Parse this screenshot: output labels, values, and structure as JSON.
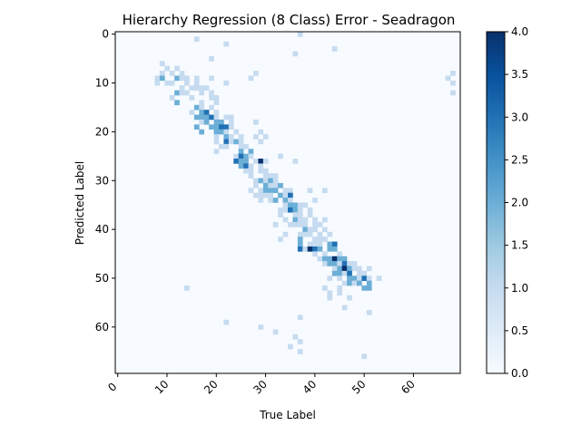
{
  "chart_data": {
    "type": "heatmap",
    "title": "Hierarchy Regression (8 Class) Error - Seadragon",
    "xlabel": "True Label",
    "ylabel": "Predicted Label",
    "x_range": [
      0,
      69
    ],
    "y_range": [
      0,
      69
    ],
    "x_ticks": [
      0,
      10,
      20,
      30,
      40,
      50,
      60
    ],
    "y_ticks": [
      0,
      10,
      20,
      30,
      40,
      50,
      60
    ],
    "colorbar": {
      "min": 0,
      "max": 4,
      "ticks": [
        "0.0",
        "0.5",
        "1.0",
        "1.5",
        "2.0",
        "2.5",
        "3.0",
        "3.5",
        "4.0"
      ],
      "colormap": "Blues"
    },
    "colors": {
      "low": "#f7fbff",
      "high": "#08306b"
    },
    "cells": [
      [
        37,
        0,
        1
      ],
      [
        16,
        1,
        1
      ],
      [
        22,
        2,
        1
      ],
      [
        44,
        3,
        1
      ],
      [
        36,
        4,
        1
      ],
      [
        19,
        5,
        1
      ],
      [
        9,
        6,
        1
      ],
      [
        10,
        7,
        1
      ],
      [
        12,
        7,
        1
      ],
      [
        9,
        8,
        1
      ],
      [
        11,
        8,
        1
      ],
      [
        13,
        8,
        1
      ],
      [
        28,
        8,
        1
      ],
      [
        68,
        8,
        1
      ],
      [
        8,
        9,
        1
      ],
      [
        9,
        9,
        2
      ],
      [
        12,
        9,
        2
      ],
      [
        13,
        9,
        1
      ],
      [
        14,
        9,
        1
      ],
      [
        16,
        9,
        1
      ],
      [
        19,
        9,
        1
      ],
      [
        27,
        9,
        1
      ],
      [
        67,
        9,
        1
      ],
      [
        8,
        10,
        1
      ],
      [
        10,
        10,
        1
      ],
      [
        11,
        10,
        1
      ],
      [
        14,
        10,
        1
      ],
      [
        16,
        10,
        1
      ],
      [
        22,
        10,
        1
      ],
      [
        68,
        10,
        1
      ],
      [
        13,
        11,
        1
      ],
      [
        15,
        11,
        1
      ],
      [
        16,
        11,
        1
      ],
      [
        17,
        11,
        1
      ],
      [
        18,
        11,
        1
      ],
      [
        12,
        12,
        2
      ],
      [
        13,
        12,
        1
      ],
      [
        14,
        12,
        1
      ],
      [
        17,
        12,
        1
      ],
      [
        19,
        12,
        1
      ],
      [
        68,
        12,
        1
      ],
      [
        11,
        13,
        1
      ],
      [
        15,
        13,
        1
      ],
      [
        19,
        13,
        1
      ],
      [
        20,
        13,
        1
      ],
      [
        12,
        14,
        2
      ],
      [
        17,
        14,
        1
      ],
      [
        20,
        14,
        1
      ],
      [
        16,
        15,
        2
      ],
      [
        17,
        15,
        1
      ],
      [
        19,
        15,
        1
      ],
      [
        15,
        16,
        1
      ],
      [
        17,
        16,
        2
      ],
      [
        18,
        16,
        3
      ],
      [
        20,
        16,
        1
      ],
      [
        16,
        17,
        2
      ],
      [
        17,
        17,
        2
      ],
      [
        18,
        17,
        2
      ],
      [
        19,
        17,
        3
      ],
      [
        20,
        17,
        1
      ],
      [
        22,
        17,
        1
      ],
      [
        23,
        17,
        1
      ],
      [
        17,
        18,
        1
      ],
      [
        18,
        18,
        2
      ],
      [
        20,
        18,
        2
      ],
      [
        21,
        18,
        2
      ],
      [
        23,
        18,
        1
      ],
      [
        28,
        18,
        1
      ],
      [
        16,
        19,
        2
      ],
      [
        19,
        19,
        2
      ],
      [
        20,
        19,
        2
      ],
      [
        21,
        19,
        3
      ],
      [
        22,
        19,
        3
      ],
      [
        23,
        19,
        1
      ],
      [
        17,
        20,
        2
      ],
      [
        20,
        20,
        2
      ],
      [
        21,
        20,
        2
      ],
      [
        22,
        20,
        1
      ],
      [
        24,
        20,
        1
      ],
      [
        29,
        20,
        1
      ],
      [
        20,
        21,
        1
      ],
      [
        22,
        21,
        2
      ],
      [
        23,
        21,
        1
      ],
      [
        25,
        21,
        1
      ],
      [
        28,
        21,
        1
      ],
      [
        30,
        21,
        1
      ],
      [
        20,
        22,
        1
      ],
      [
        22,
        22,
        3
      ],
      [
        23,
        22,
        1
      ],
      [
        24,
        22,
        2
      ],
      [
        25,
        22,
        1
      ],
      [
        29,
        22,
        1
      ],
      [
        21,
        23,
        1
      ],
      [
        22,
        23,
        1
      ],
      [
        25,
        23,
        1
      ],
      [
        26,
        23,
        1
      ],
      [
        20,
        24,
        1
      ],
      [
        25,
        24,
        2
      ],
      [
        27,
        24,
        2
      ],
      [
        24,
        25,
        1
      ],
      [
        25,
        25,
        3
      ],
      [
        26,
        25,
        2
      ],
      [
        27,
        25,
        1
      ],
      [
        33,
        25,
        1
      ],
      [
        24,
        26,
        3
      ],
      [
        25,
        26,
        2
      ],
      [
        26,
        26,
        2
      ],
      [
        28,
        26,
        1
      ],
      [
        29,
        26,
        4
      ],
      [
        30,
        26,
        1
      ],
      [
        36,
        26,
        1
      ],
      [
        25,
        27,
        2
      ],
      [
        26,
        27,
        3
      ],
      [
        27,
        27,
        1
      ],
      [
        29,
        27,
        1
      ],
      [
        26,
        28,
        1
      ],
      [
        27,
        28,
        1
      ],
      [
        29,
        28,
        1
      ],
      [
        30,
        28,
        1
      ],
      [
        27,
        29,
        1
      ],
      [
        30,
        29,
        1
      ],
      [
        31,
        29,
        1
      ],
      [
        32,
        29,
        1
      ],
      [
        28,
        30,
        1
      ],
      [
        29,
        30,
        2
      ],
      [
        30,
        30,
        1
      ],
      [
        31,
        30,
        2
      ],
      [
        32,
        30,
        1
      ],
      [
        28,
        31,
        1
      ],
      [
        30,
        31,
        2
      ],
      [
        31,
        31,
        1
      ],
      [
        32,
        31,
        1
      ],
      [
        33,
        31,
        2
      ],
      [
        27,
        32,
        1
      ],
      [
        29,
        32,
        1
      ],
      [
        30,
        32,
        2
      ],
      [
        31,
        32,
        2
      ],
      [
        32,
        32,
        2
      ],
      [
        34,
        32,
        1
      ],
      [
        35,
        32,
        1
      ],
      [
        39,
        32,
        1
      ],
      [
        42,
        32,
        1
      ],
      [
        28,
        33,
        1
      ],
      [
        29,
        33,
        1
      ],
      [
        30,
        33,
        1
      ],
      [
        31,
        33,
        1
      ],
      [
        33,
        33,
        2
      ],
      [
        34,
        33,
        1
      ],
      [
        35,
        33,
        3
      ],
      [
        29,
        34,
        1
      ],
      [
        31,
        34,
        1
      ],
      [
        32,
        34,
        2
      ],
      [
        34,
        34,
        2
      ],
      [
        35,
        34,
        1
      ],
      [
        40,
        34,
        1
      ],
      [
        34,
        35,
        1
      ],
      [
        35,
        35,
        2
      ],
      [
        36,
        35,
        2
      ],
      [
        37,
        35,
        1
      ],
      [
        38,
        35,
        1
      ],
      [
        33,
        36,
        1
      ],
      [
        34,
        36,
        1
      ],
      [
        35,
        36,
        3
      ],
      [
        36,
        36,
        2
      ],
      [
        37,
        36,
        1
      ],
      [
        39,
        36,
        1
      ],
      [
        33,
        37,
        1
      ],
      [
        36,
        37,
        1
      ],
      [
        37,
        37,
        1
      ],
      [
        39,
        37,
        1
      ],
      [
        34,
        38,
        1
      ],
      [
        36,
        38,
        2
      ],
      [
        37,
        38,
        1
      ],
      [
        38,
        38,
        1
      ],
      [
        40,
        38,
        1
      ],
      [
        42,
        38,
        1
      ],
      [
        32,
        39,
        1
      ],
      [
        35,
        39,
        1
      ],
      [
        36,
        39,
        1
      ],
      [
        37,
        39,
        1
      ],
      [
        38,
        39,
        1
      ],
      [
        40,
        39,
        1
      ],
      [
        41,
        39,
        1
      ],
      [
        38,
        40,
        2
      ],
      [
        39,
        40,
        1
      ],
      [
        40,
        40,
        1
      ],
      [
        42,
        40,
        1
      ],
      [
        34,
        41,
        1
      ],
      [
        37,
        41,
        1
      ],
      [
        38,
        41,
        1
      ],
      [
        39,
        41,
        1
      ],
      [
        41,
        41,
        1
      ],
      [
        43,
        41,
        1
      ],
      [
        33,
        42,
        1
      ],
      [
        37,
        42,
        2
      ],
      [
        40,
        42,
        1
      ],
      [
        41,
        42,
        1
      ],
      [
        42,
        42,
        1
      ],
      [
        37,
        43,
        2
      ],
      [
        39,
        43,
        1
      ],
      [
        40,
        43,
        1
      ],
      [
        41,
        43,
        1
      ],
      [
        43,
        43,
        2
      ],
      [
        44,
        43,
        3
      ],
      [
        37,
        44,
        3
      ],
      [
        38,
        44,
        1
      ],
      [
        39,
        44,
        4
      ],
      [
        40,
        44,
        3
      ],
      [
        41,
        44,
        2
      ],
      [
        43,
        44,
        2
      ],
      [
        44,
        44,
        2
      ],
      [
        40,
        45,
        1
      ],
      [
        42,
        45,
        1
      ],
      [
        45,
        45,
        1
      ],
      [
        41,
        46,
        1
      ],
      [
        42,
        46,
        2
      ],
      [
        43,
        46,
        2
      ],
      [
        44,
        46,
        4
      ],
      [
        45,
        46,
        2
      ],
      [
        46,
        46,
        2
      ],
      [
        42,
        47,
        1
      ],
      [
        43,
        47,
        2
      ],
      [
        44,
        47,
        2
      ],
      [
        45,
        47,
        1
      ],
      [
        46,
        47,
        3
      ],
      [
        47,
        47,
        1
      ],
      [
        48,
        47,
        1
      ],
      [
        44,
        48,
        1
      ],
      [
        45,
        48,
        2
      ],
      [
        46,
        48,
        4
      ],
      [
        47,
        48,
        2
      ],
      [
        48,
        48,
        1
      ],
      [
        49,
        48,
        1
      ],
      [
        51,
        48,
        1
      ],
      [
        44,
        49,
        2
      ],
      [
        45,
        49,
        2
      ],
      [
        46,
        49,
        1
      ],
      [
        47,
        49,
        3
      ],
      [
        49,
        49,
        1
      ],
      [
        50,
        49,
        1
      ],
      [
        43,
        50,
        1
      ],
      [
        45,
        50,
        1
      ],
      [
        47,
        50,
        2
      ],
      [
        48,
        50,
        2
      ],
      [
        49,
        50,
        1
      ],
      [
        50,
        50,
        3
      ],
      [
        51,
        50,
        1
      ],
      [
        53,
        50,
        1
      ],
      [
        46,
        51,
        1
      ],
      [
        47,
        51,
        2
      ],
      [
        48,
        51,
        1
      ],
      [
        49,
        51,
        2
      ],
      [
        51,
        51,
        2
      ],
      [
        14,
        52,
        1
      ],
      [
        42,
        52,
        1
      ],
      [
        45,
        52,
        1
      ],
      [
        50,
        52,
        2
      ],
      [
        51,
        52,
        2
      ],
      [
        43,
        53,
        1
      ],
      [
        45,
        53,
        1
      ],
      [
        43,
        54,
        1
      ],
      [
        47,
        54,
        1
      ],
      [
        46,
        56,
        1
      ],
      [
        51,
        57,
        1
      ],
      [
        37,
        58,
        1
      ],
      [
        22,
        59,
        1
      ],
      [
        29,
        60,
        1
      ],
      [
        32,
        61,
        1
      ],
      [
        36,
        62,
        1
      ],
      [
        37,
        63,
        1
      ],
      [
        35,
        64,
        1
      ],
      [
        37,
        65,
        1
      ],
      [
        50,
        66,
        1
      ]
    ]
  }
}
